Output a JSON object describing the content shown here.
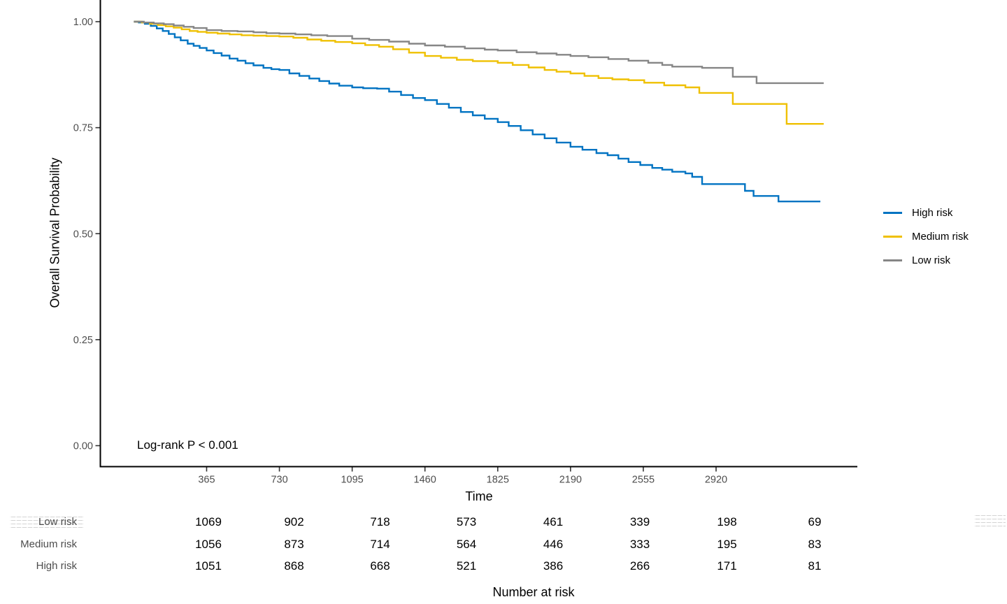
{
  "chart_data": {
    "type": "line",
    "subtype": "kaplan-meier-step",
    "title": "",
    "xlabel": "Time",
    "ylabel": "Overall Survival Probability",
    "annotation": "Log-rank P < 0.001",
    "xlim": [
      0,
      3630
    ],
    "ylim": [
      0.0,
      1.0
    ],
    "grid": false,
    "legend_position": "right",
    "x_ticks": [
      365,
      730,
      1095,
      1460,
      1825,
      2190,
      2555,
      2920
    ],
    "y_ticks": [
      {
        "label": "1.00",
        "value": 1.0
      },
      {
        "label": "0.75",
        "value": 0.75
      },
      {
        "label": "0.50",
        "value": 0.5
      },
      {
        "label": "0.25",
        "value": 0.25
      },
      {
        "label": "0.00",
        "value": 0.0
      }
    ],
    "series": [
      {
        "name": "High risk",
        "color": "#0073C2",
        "points": [
          [
            0,
            1.0
          ],
          [
            25,
            0.998
          ],
          [
            55,
            0.995
          ],
          [
            85,
            0.99
          ],
          [
            115,
            0.984
          ],
          [
            145,
            0.978
          ],
          [
            175,
            0.971
          ],
          [
            205,
            0.963
          ],
          [
            235,
            0.956
          ],
          [
            270,
            0.948
          ],
          [
            300,
            0.943
          ],
          [
            330,
            0.938
          ],
          [
            365,
            0.932
          ],
          [
            400,
            0.926
          ],
          [
            440,
            0.92
          ],
          [
            480,
            0.913
          ],
          [
            520,
            0.908
          ],
          [
            560,
            0.902
          ],
          [
            600,
            0.897
          ],
          [
            650,
            0.891
          ],
          [
            690,
            0.888
          ],
          [
            730,
            0.886
          ],
          [
            780,
            0.878
          ],
          [
            830,
            0.872
          ],
          [
            880,
            0.866
          ],
          [
            930,
            0.86
          ],
          [
            980,
            0.854
          ],
          [
            1030,
            0.849
          ],
          [
            1095,
            0.845
          ],
          [
            1150,
            0.843
          ],
          [
            1220,
            0.842
          ],
          [
            1280,
            0.835
          ],
          [
            1340,
            0.827
          ],
          [
            1400,
            0.82
          ],
          [
            1460,
            0.815
          ],
          [
            1520,
            0.806
          ],
          [
            1580,
            0.797
          ],
          [
            1640,
            0.787
          ],
          [
            1700,
            0.779
          ],
          [
            1760,
            0.771
          ],
          [
            1825,
            0.763
          ],
          [
            1880,
            0.754
          ],
          [
            1940,
            0.744
          ],
          [
            2000,
            0.734
          ],
          [
            2060,
            0.725
          ],
          [
            2120,
            0.715
          ],
          [
            2190,
            0.705
          ],
          [
            2250,
            0.698
          ],
          [
            2320,
            0.69
          ],
          [
            2376,
            0.685
          ],
          [
            2430,
            0.677
          ],
          [
            2481,
            0.669
          ],
          [
            2540,
            0.662
          ],
          [
            2600,
            0.655
          ],
          [
            2650,
            0.651
          ],
          [
            2700,
            0.646
          ],
          [
            2766,
            0.642
          ],
          [
            2800,
            0.634
          ],
          [
            2850,
            0.617
          ],
          [
            3065,
            0.601
          ],
          [
            3108,
            0.589
          ],
          [
            3233,
            0.576
          ],
          [
            3443,
            0.576
          ]
        ]
      },
      {
        "name": "Medium risk",
        "color": "#EFC000",
        "points": [
          [
            0,
            1.0
          ],
          [
            40,
            0.998
          ],
          [
            80,
            0.995
          ],
          [
            120,
            0.992
          ],
          [
            160,
            0.989
          ],
          [
            200,
            0.986
          ],
          [
            240,
            0.982
          ],
          [
            280,
            0.978
          ],
          [
            320,
            0.976
          ],
          [
            365,
            0.974
          ],
          [
            420,
            0.972
          ],
          [
            480,
            0.97
          ],
          [
            540,
            0.968
          ],
          [
            600,
            0.967
          ],
          [
            665,
            0.966
          ],
          [
            730,
            0.965
          ],
          [
            800,
            0.962
          ],
          [
            870,
            0.958
          ],
          [
            940,
            0.955
          ],
          [
            1010,
            0.952
          ],
          [
            1095,
            0.949
          ],
          [
            1160,
            0.945
          ],
          [
            1230,
            0.941
          ],
          [
            1300,
            0.935
          ],
          [
            1380,
            0.927
          ],
          [
            1460,
            0.919
          ],
          [
            1540,
            0.915
          ],
          [
            1620,
            0.91
          ],
          [
            1700,
            0.907
          ],
          [
            1825,
            0.903
          ],
          [
            1900,
            0.898
          ],
          [
            1980,
            0.892
          ],
          [
            2060,
            0.886
          ],
          [
            2120,
            0.882
          ],
          [
            2190,
            0.878
          ],
          [
            2260,
            0.872
          ],
          [
            2330,
            0.867
          ],
          [
            2400,
            0.864
          ],
          [
            2481,
            0.862
          ],
          [
            2560,
            0.856
          ],
          [
            2660,
            0.85
          ],
          [
            2766,
            0.845
          ],
          [
            2836,
            0.832
          ],
          [
            3004,
            0.806
          ],
          [
            3274,
            0.759
          ],
          [
            3460,
            0.759
          ]
        ]
      },
      {
        "name": "Low risk",
        "color": "#868686",
        "points": [
          [
            0,
            1.0
          ],
          [
            50,
            0.998
          ],
          [
            100,
            0.996
          ],
          [
            150,
            0.994
          ],
          [
            200,
            0.991
          ],
          [
            250,
            0.988
          ],
          [
            300,
            0.985
          ],
          [
            365,
            0.98
          ],
          [
            440,
            0.978
          ],
          [
            520,
            0.977
          ],
          [
            600,
            0.975
          ],
          [
            665,
            0.973
          ],
          [
            730,
            0.972
          ],
          [
            810,
            0.97
          ],
          [
            890,
            0.968
          ],
          [
            970,
            0.966
          ],
          [
            1095,
            0.96
          ],
          [
            1180,
            0.957
          ],
          [
            1280,
            0.953
          ],
          [
            1380,
            0.948
          ],
          [
            1460,
            0.944
          ],
          [
            1560,
            0.941
          ],
          [
            1660,
            0.937
          ],
          [
            1760,
            0.934
          ],
          [
            1825,
            0.932
          ],
          [
            1920,
            0.928
          ],
          [
            2020,
            0.925
          ],
          [
            2120,
            0.922
          ],
          [
            2190,
            0.919
          ],
          [
            2280,
            0.916
          ],
          [
            2380,
            0.912
          ],
          [
            2481,
            0.908
          ],
          [
            2580,
            0.903
          ],
          [
            2650,
            0.898
          ],
          [
            2700,
            0.894
          ],
          [
            2850,
            0.891
          ],
          [
            3004,
            0.87
          ],
          [
            3123,
            0.855
          ],
          [
            3460,
            0.855
          ]
        ]
      }
    ],
    "legend": [
      {
        "label": "High risk",
        "color": "#0073C2"
      },
      {
        "label": "Medium risk",
        "color": "#EFC000"
      },
      {
        "label": "Low risk",
        "color": "#868686"
      }
    ],
    "risk_table": {
      "title": "Number at risk",
      "times": [
        365,
        730,
        1095,
        1460,
        1825,
        2190,
        2555,
        2920
      ],
      "rows": [
        {
          "label": "Low risk",
          "counts": [
            1069,
            902,
            718,
            573,
            461,
            339,
            198,
            69
          ]
        },
        {
          "label": "Medium risk",
          "counts": [
            1056,
            873,
            714,
            564,
            446,
            333,
            195,
            83
          ]
        },
        {
          "label": "High risk",
          "counts": [
            1051,
            868,
            668,
            521,
            386,
            266,
            171,
            81
          ]
        }
      ]
    }
  }
}
